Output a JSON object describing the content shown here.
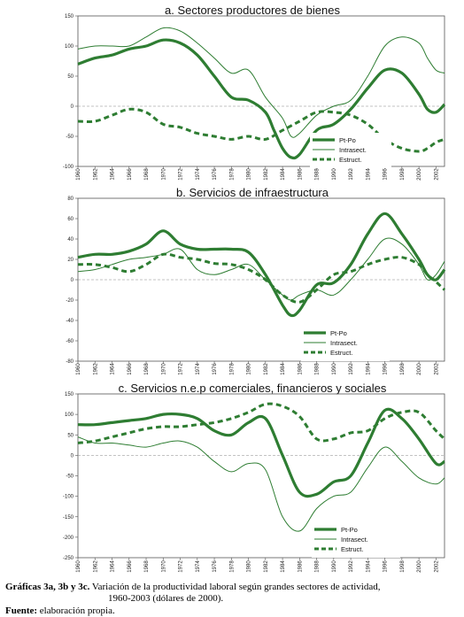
{
  "chart_data": [
    {
      "type": "line",
      "title": "a. Sectores productores de bienes",
      "xlabel": "",
      "ylabel": "",
      "xlim": [
        1960,
        2003
      ],
      "ylim": [
        -100,
        150
      ],
      "yticks": [
        -100,
        -50,
        0,
        50,
        100,
        150
      ],
      "xticks": [
        "1960",
        "1962",
        "1964",
        "1966",
        "1968",
        "1970",
        "1972",
        "1974",
        "1976",
        "1978",
        "1980",
        "1982",
        "1984",
        "1986",
        "1988",
        "1990",
        "1992",
        "1994",
        "1996",
        "1998",
        "2000",
        "2002"
      ],
      "grid": "dashed horizontal at 0",
      "legend_placement": "bottom-right",
      "series": [
        {
          "name": "Pt-Po",
          "style": "thick",
          "x": [
            1960,
            1962,
            1964,
            1966,
            1968,
            1970,
            1972,
            1974,
            1976,
            1978,
            1980,
            1982,
            1983,
            1984,
            1985,
            1986,
            1988,
            1990,
            1992,
            1994,
            1996,
            1998,
            2000,
            2001,
            2002,
            2003
          ],
          "y": [
            70,
            80,
            85,
            95,
            100,
            110,
            105,
            85,
            50,
            15,
            10,
            -10,
            -40,
            -70,
            -85,
            -80,
            -40,
            -30,
            -5,
            30,
            60,
            55,
            20,
            -5,
            -10,
            3
          ]
        },
        {
          "name": "Intrasect.",
          "style": "thin",
          "x": [
            1960,
            1962,
            1964,
            1966,
            1968,
            1970,
            1972,
            1974,
            1976,
            1978,
            1980,
            1982,
            1984,
            1985,
            1986,
            1988,
            1990,
            1992,
            1994,
            1996,
            1998,
            2000,
            2001,
            2002,
            2003
          ],
          "y": [
            95,
            100,
            100,
            100,
            115,
            130,
            125,
            105,
            80,
            55,
            60,
            15,
            -20,
            -50,
            -45,
            -15,
            0,
            10,
            50,
            100,
            115,
            105,
            80,
            60,
            55
          ]
        },
        {
          "name": "Estruct.",
          "style": "dashed",
          "x": [
            1960,
            1962,
            1964,
            1966,
            1968,
            1970,
            1972,
            1974,
            1976,
            1978,
            1980,
            1982,
            1984,
            1986,
            1988,
            1990,
            1992,
            1994,
            1996,
            1998,
            2000,
            2001,
            2002,
            2003
          ],
          "y": [
            -25,
            -25,
            -15,
            -5,
            -10,
            -30,
            -35,
            -45,
            -50,
            -55,
            -50,
            -55,
            -40,
            -25,
            -10,
            -10,
            -15,
            -30,
            -55,
            -70,
            -75,
            -70,
            -60,
            -55
          ]
        }
      ]
    },
    {
      "type": "line",
      "title": "b. Servicios de infraestructura",
      "xlabel": "",
      "ylabel": "",
      "xlim": [
        1960,
        2003
      ],
      "ylim": [
        -80,
        80
      ],
      "yticks": [
        -80,
        -60,
        -40,
        -20,
        0,
        20,
        40,
        60,
        80
      ],
      "xticks": [
        "1960",
        "1962",
        "1964",
        "1966",
        "1968",
        "1970",
        "1972",
        "1974",
        "1976",
        "1978",
        "1980",
        "1982",
        "1984",
        "1986",
        "1988",
        "1990",
        "1992",
        "1994",
        "1996",
        "1998",
        "2000",
        "2002"
      ],
      "grid": "dashed horizontal at 0",
      "legend_placement": "bottom-right",
      "series": [
        {
          "name": "Pt-Po",
          "style": "thick",
          "x": [
            1960,
            1962,
            1964,
            1966,
            1968,
            1970,
            1972,
            1974,
            1976,
            1978,
            1980,
            1982,
            1984,
            1985,
            1986,
            1988,
            1990,
            1992,
            1994,
            1996,
            1998,
            2000,
            2001,
            2002,
            2003
          ],
          "y": [
            22,
            25,
            25,
            28,
            35,
            48,
            35,
            30,
            30,
            30,
            27,
            5,
            -25,
            -35,
            -30,
            -5,
            -3,
            15,
            45,
            65,
            45,
            20,
            5,
            0,
            10
          ]
        },
        {
          "name": "Intrasect.",
          "style": "thin",
          "x": [
            1960,
            1962,
            1964,
            1966,
            1968,
            1970,
            1972,
            1974,
            1976,
            1978,
            1980,
            1982,
            1984,
            1985,
            1986,
            1988,
            1990,
            1992,
            1994,
            1996,
            1998,
            2000,
            2001,
            2002,
            2003
          ],
          "y": [
            8,
            10,
            15,
            20,
            22,
            25,
            30,
            10,
            5,
            10,
            15,
            0,
            -15,
            -20,
            -15,
            -10,
            -15,
            0,
            20,
            40,
            35,
            15,
            0,
            5,
            18
          ]
        },
        {
          "name": "Estruct.",
          "style": "dashed",
          "x": [
            1960,
            1962,
            1964,
            1966,
            1968,
            1970,
            1972,
            1974,
            1976,
            1978,
            1980,
            1982,
            1984,
            1986,
            1988,
            1990,
            1992,
            1994,
            1996,
            1998,
            2000,
            2001,
            2002,
            2003
          ],
          "y": [
            15,
            15,
            12,
            8,
            15,
            25,
            22,
            20,
            16,
            15,
            10,
            0,
            -15,
            -22,
            -10,
            5,
            8,
            15,
            20,
            22,
            15,
            5,
            -2,
            -10
          ]
        }
      ]
    },
    {
      "type": "line",
      "title": "c. Servicios n.e.p comerciales, financieros y sociales",
      "xlabel": "",
      "ylabel": "",
      "xlim": [
        1960,
        2003
      ],
      "ylim": [
        -250,
        150
      ],
      "yticks": [
        -250,
        -200,
        -150,
        -100,
        -50,
        0,
        50,
        100,
        150
      ],
      "xticks": [
        "1960",
        "1962",
        "1964",
        "1966",
        "1968",
        "1970",
        "1972",
        "1974",
        "1976",
        "1978",
        "1980",
        "1982",
        "1984",
        "1986",
        "1988",
        "1990",
        "1992",
        "1994",
        "1996",
        "1998",
        "2000",
        "2002"
      ],
      "grid": "dashed horizontal at 0",
      "legend_placement": "bottom-right",
      "series": [
        {
          "name": "Pt-Po",
          "style": "thick",
          "x": [
            1960,
            1962,
            1964,
            1966,
            1968,
            1970,
            1972,
            1974,
            1976,
            1978,
            1980,
            1982,
            1984,
            1986,
            1988,
            1990,
            1992,
            1994,
            1996,
            1998,
            2000,
            2002,
            2003
          ],
          "y": [
            75,
            75,
            80,
            85,
            90,
            100,
            100,
            90,
            60,
            50,
            80,
            90,
            0,
            -90,
            -95,
            -65,
            -50,
            30,
            110,
            90,
            40,
            -20,
            -15
          ]
        },
        {
          "name": "Intrasect.",
          "style": "thin",
          "x": [
            1960,
            1962,
            1964,
            1966,
            1968,
            1970,
            1972,
            1974,
            1976,
            1978,
            1980,
            1982,
            1984,
            1986,
            1988,
            1990,
            1992,
            1994,
            1996,
            1998,
            2000,
            2002,
            2003
          ],
          "y": [
            45,
            30,
            30,
            25,
            20,
            30,
            35,
            20,
            -15,
            -40,
            -20,
            -35,
            -150,
            -185,
            -130,
            -100,
            -90,
            -30,
            20,
            -15,
            -55,
            -70,
            -55
          ]
        },
        {
          "name": "Estruct.",
          "style": "dashed",
          "x": [
            1960,
            1962,
            1964,
            1966,
            1968,
            1970,
            1972,
            1974,
            1976,
            1978,
            1980,
            1982,
            1984,
            1986,
            1988,
            1990,
            1992,
            1994,
            1996,
            1998,
            2000,
            2002,
            2003
          ],
          "y": [
            30,
            35,
            45,
            55,
            65,
            70,
            70,
            75,
            80,
            90,
            105,
            125,
            120,
            95,
            40,
            40,
            55,
            60,
            90,
            105,
            105,
            60,
            40
          ]
        }
      ]
    }
  ],
  "caption": {
    "label": "Gráficas 3a, 3b y 3c.",
    "text1": "Variación de la productividad laboral según grandes sectores de actividad,",
    "text2": "1960-2003 (dólares de 2000).",
    "source_label": "Fuente:",
    "source_text": "elaboración propia."
  }
}
